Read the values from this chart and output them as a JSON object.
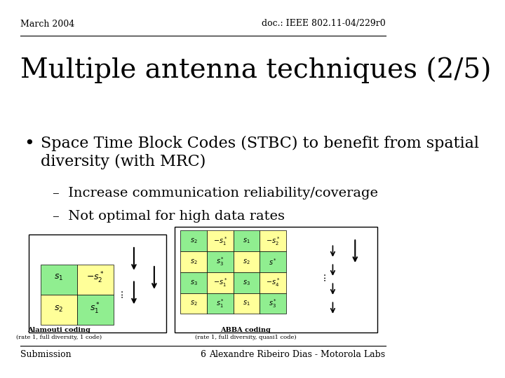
{
  "bg_color": "#ffffff",
  "header_left": "March 2004",
  "header_right": "doc.: IEEE 802.11-04/229r0",
  "title": "Multiple antenna techniques (2/5)",
  "bullet_main": "Space Time Block Codes (STBC) to benefit from spatial diversity (with MRC)",
  "sub_bullet1": "–  Increase communication reliability/coverage",
  "sub_bullet2": "–  Not optimal for high data rates",
  "footer_left": "Submission",
  "footer_center": "6",
  "footer_right": "Alexandre Ribeiro Dias - Motorola Labs",
  "header_fontsize": 9,
  "title_fontsize": 28,
  "bullet_fontsize": 16,
  "sub_bullet_fontsize": 14,
  "footer_fontsize": 9,
  "line_color": "#000000",
  "text_color": "#000000"
}
